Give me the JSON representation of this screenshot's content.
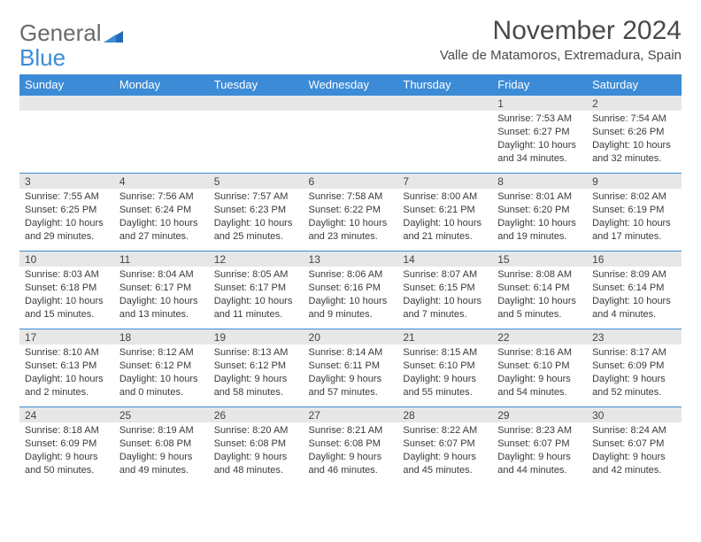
{
  "brand": {
    "part1": "General",
    "part2": "Blue"
  },
  "title": "November 2024",
  "location": "Valle de Matamoros, Extremadura, Spain",
  "colors": {
    "header_blue": "#3b8bd6",
    "gray_band": "#e7e7e7",
    "text": "#3a3a3a",
    "logo_gray": "#6a6a6a"
  },
  "weekdays": [
    "Sunday",
    "Monday",
    "Tuesday",
    "Wednesday",
    "Thursday",
    "Friday",
    "Saturday"
  ],
  "weeks": [
    [
      null,
      null,
      null,
      null,
      null,
      {
        "n": "1",
        "sr": "Sunrise: 7:53 AM",
        "ss": "Sunset: 6:27 PM",
        "dl": "Daylight: 10 hours and 34 minutes."
      },
      {
        "n": "2",
        "sr": "Sunrise: 7:54 AM",
        "ss": "Sunset: 6:26 PM",
        "dl": "Daylight: 10 hours and 32 minutes."
      }
    ],
    [
      {
        "n": "3",
        "sr": "Sunrise: 7:55 AM",
        "ss": "Sunset: 6:25 PM",
        "dl": "Daylight: 10 hours and 29 minutes."
      },
      {
        "n": "4",
        "sr": "Sunrise: 7:56 AM",
        "ss": "Sunset: 6:24 PM",
        "dl": "Daylight: 10 hours and 27 minutes."
      },
      {
        "n": "5",
        "sr": "Sunrise: 7:57 AM",
        "ss": "Sunset: 6:23 PM",
        "dl": "Daylight: 10 hours and 25 minutes."
      },
      {
        "n": "6",
        "sr": "Sunrise: 7:58 AM",
        "ss": "Sunset: 6:22 PM",
        "dl": "Daylight: 10 hours and 23 minutes."
      },
      {
        "n": "7",
        "sr": "Sunrise: 8:00 AM",
        "ss": "Sunset: 6:21 PM",
        "dl": "Daylight: 10 hours and 21 minutes."
      },
      {
        "n": "8",
        "sr": "Sunrise: 8:01 AM",
        "ss": "Sunset: 6:20 PM",
        "dl": "Daylight: 10 hours and 19 minutes."
      },
      {
        "n": "9",
        "sr": "Sunrise: 8:02 AM",
        "ss": "Sunset: 6:19 PM",
        "dl": "Daylight: 10 hours and 17 minutes."
      }
    ],
    [
      {
        "n": "10",
        "sr": "Sunrise: 8:03 AM",
        "ss": "Sunset: 6:18 PM",
        "dl": "Daylight: 10 hours and 15 minutes."
      },
      {
        "n": "11",
        "sr": "Sunrise: 8:04 AM",
        "ss": "Sunset: 6:17 PM",
        "dl": "Daylight: 10 hours and 13 minutes."
      },
      {
        "n": "12",
        "sr": "Sunrise: 8:05 AM",
        "ss": "Sunset: 6:17 PM",
        "dl": "Daylight: 10 hours and 11 minutes."
      },
      {
        "n": "13",
        "sr": "Sunrise: 8:06 AM",
        "ss": "Sunset: 6:16 PM",
        "dl": "Daylight: 10 hours and 9 minutes."
      },
      {
        "n": "14",
        "sr": "Sunrise: 8:07 AM",
        "ss": "Sunset: 6:15 PM",
        "dl": "Daylight: 10 hours and 7 minutes."
      },
      {
        "n": "15",
        "sr": "Sunrise: 8:08 AM",
        "ss": "Sunset: 6:14 PM",
        "dl": "Daylight: 10 hours and 5 minutes."
      },
      {
        "n": "16",
        "sr": "Sunrise: 8:09 AM",
        "ss": "Sunset: 6:14 PM",
        "dl": "Daylight: 10 hours and 4 minutes."
      }
    ],
    [
      {
        "n": "17",
        "sr": "Sunrise: 8:10 AM",
        "ss": "Sunset: 6:13 PM",
        "dl": "Daylight: 10 hours and 2 minutes."
      },
      {
        "n": "18",
        "sr": "Sunrise: 8:12 AM",
        "ss": "Sunset: 6:12 PM",
        "dl": "Daylight: 10 hours and 0 minutes."
      },
      {
        "n": "19",
        "sr": "Sunrise: 8:13 AM",
        "ss": "Sunset: 6:12 PM",
        "dl": "Daylight: 9 hours and 58 minutes."
      },
      {
        "n": "20",
        "sr": "Sunrise: 8:14 AM",
        "ss": "Sunset: 6:11 PM",
        "dl": "Daylight: 9 hours and 57 minutes."
      },
      {
        "n": "21",
        "sr": "Sunrise: 8:15 AM",
        "ss": "Sunset: 6:10 PM",
        "dl": "Daylight: 9 hours and 55 minutes."
      },
      {
        "n": "22",
        "sr": "Sunrise: 8:16 AM",
        "ss": "Sunset: 6:10 PM",
        "dl": "Daylight: 9 hours and 54 minutes."
      },
      {
        "n": "23",
        "sr": "Sunrise: 8:17 AM",
        "ss": "Sunset: 6:09 PM",
        "dl": "Daylight: 9 hours and 52 minutes."
      }
    ],
    [
      {
        "n": "24",
        "sr": "Sunrise: 8:18 AM",
        "ss": "Sunset: 6:09 PM",
        "dl": "Daylight: 9 hours and 50 minutes."
      },
      {
        "n": "25",
        "sr": "Sunrise: 8:19 AM",
        "ss": "Sunset: 6:08 PM",
        "dl": "Daylight: 9 hours and 49 minutes."
      },
      {
        "n": "26",
        "sr": "Sunrise: 8:20 AM",
        "ss": "Sunset: 6:08 PM",
        "dl": "Daylight: 9 hours and 48 minutes."
      },
      {
        "n": "27",
        "sr": "Sunrise: 8:21 AM",
        "ss": "Sunset: 6:08 PM",
        "dl": "Daylight: 9 hours and 46 minutes."
      },
      {
        "n": "28",
        "sr": "Sunrise: 8:22 AM",
        "ss": "Sunset: 6:07 PM",
        "dl": "Daylight: 9 hours and 45 minutes."
      },
      {
        "n": "29",
        "sr": "Sunrise: 8:23 AM",
        "ss": "Sunset: 6:07 PM",
        "dl": "Daylight: 9 hours and 44 minutes."
      },
      {
        "n": "30",
        "sr": "Sunrise: 8:24 AM",
        "ss": "Sunset: 6:07 PM",
        "dl": "Daylight: 9 hours and 42 minutes."
      }
    ]
  ]
}
